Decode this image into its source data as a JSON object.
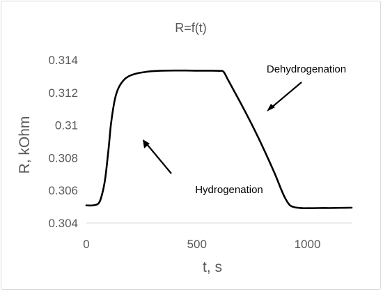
{
  "chart_data": {
    "type": "line",
    "title": "R=f(t)",
    "xlabel": "t, s",
    "ylabel": "R, kOhm",
    "xlim": [
      0,
      1200
    ],
    "ylim": [
      0.304,
      0.314
    ],
    "x_ticks": [
      "0",
      "500",
      "1000"
    ],
    "y_ticks": [
      "0.304",
      "0.306",
      "0.308",
      "0.31",
      "0.312",
      "0.314"
    ],
    "grid": false,
    "legend": "none",
    "line_color": "#000000",
    "series": [
      {
        "x": [
          0,
          30,
          55,
          70,
          85,
          100,
          110,
          120,
          130,
          140,
          150,
          165,
          180,
          200,
          230,
          260,
          300,
          350,
          400,
          450,
          500,
          550,
          600,
          620,
          640,
          660,
          700,
          750,
          800,
          850,
          880,
          900,
          920,
          940,
          960,
          980,
          1000,
          1050,
          1100,
          1150,
          1200
        ],
        "y": [
          0.30508,
          0.30508,
          0.3052,
          0.3057,
          0.3067,
          0.3085,
          0.3099,
          0.3109,
          0.31165,
          0.3121,
          0.3124,
          0.3127,
          0.3129,
          0.31305,
          0.31318,
          0.31325,
          0.31331,
          0.31334,
          0.31335,
          0.31335,
          0.31334,
          0.31334,
          0.31333,
          0.31328,
          0.3128,
          0.3123,
          0.3113,
          0.31,
          0.3086,
          0.3071,
          0.3061,
          0.3055,
          0.3051,
          0.30497,
          0.30493,
          0.30491,
          0.30491,
          0.30492,
          0.30492,
          0.30493,
          0.30494
        ]
      }
    ],
    "annotations": [
      {
        "text": "Dehydrogenation",
        "x": 945,
        "y": 0.3131
      },
      {
        "text": "Hydrogenation",
        "x": 740,
        "y": 0.3055
      }
    ]
  }
}
